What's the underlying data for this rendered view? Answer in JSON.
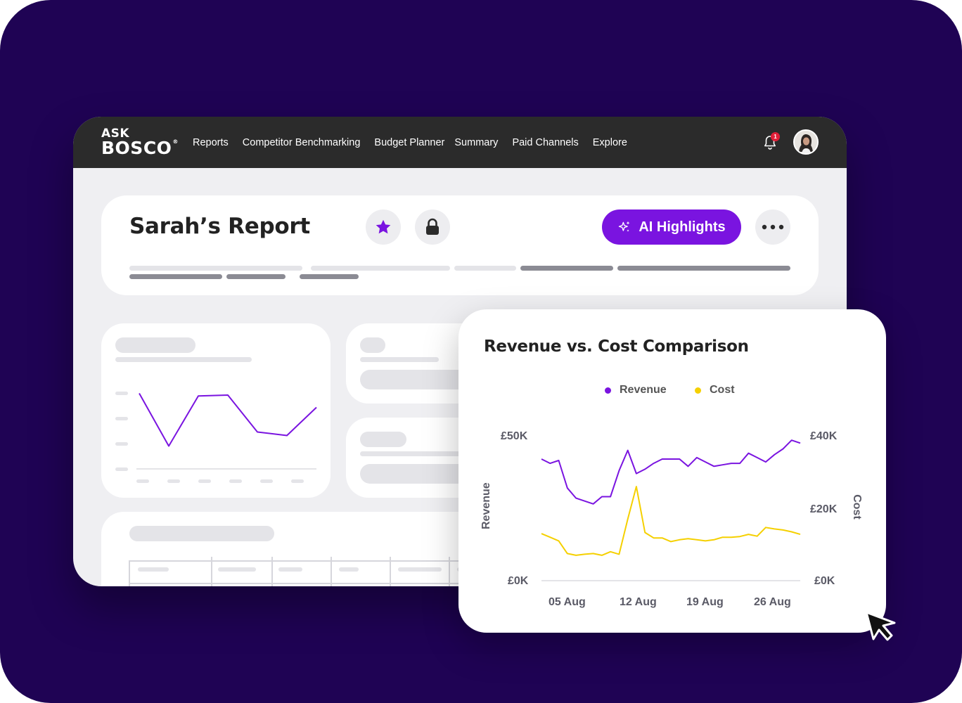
{
  "brand": {
    "ask": "ASK",
    "bosco": "BOSCO",
    "reg": "®"
  },
  "nav": {
    "items": [
      "Reports",
      "Competitor Benchmarking",
      "Budget Planner",
      "Summary",
      "Paid Channels",
      "Explore"
    ]
  },
  "notifications": {
    "count": "1"
  },
  "report": {
    "title": "Sarah’s Report",
    "ai_button": "AI Highlights"
  },
  "colors": {
    "accent": "#7a14e0",
    "revenue": "#7a14e0",
    "cost": "#f5d000",
    "background": "#1f0354"
  },
  "icons": [
    "star-icon",
    "lock-icon",
    "sparkle-icon",
    "more-icon",
    "bell-icon",
    "cursor-icon"
  ],
  "chart_data": {
    "type": "line",
    "title": "Revenue vs. Cost Comparison",
    "y_left_label": "Revenue",
    "y_right_label": "Cost",
    "y_left_ticks": [
      "£0K",
      "£50K"
    ],
    "y_right_ticks": [
      "£0K",
      "£20K",
      "£40K"
    ],
    "x_ticks": [
      "05 Aug",
      "12 Aug",
      "19 Aug",
      "26 Aug"
    ],
    "ylim_left": [
      0,
      50000
    ],
    "ylim_right": [
      0,
      40000
    ],
    "x": [
      1,
      2,
      3,
      4,
      5,
      6,
      7,
      8,
      9,
      10,
      11,
      12,
      13,
      14,
      15,
      16,
      17,
      18,
      19,
      20,
      21,
      22,
      23,
      24,
      25,
      26,
      27,
      28,
      29,
      30,
      31
    ],
    "series": [
      {
        "name": "Revenue",
        "axis": "left",
        "values": [
          42000,
          40500,
          41500,
          32000,
          28500,
          27500,
          26500,
          29000,
          29000,
          38000,
          45000,
          37000,
          38500,
          40500,
          42000,
          42000,
          42000,
          39500,
          42500,
          41000,
          39500,
          40000,
          40500,
          40500,
          44000,
          42500,
          41000,
          43500,
          45500,
          48500,
          47500
        ]
      },
      {
        "name": "Cost",
        "axis": "right",
        "values": [
          13000,
          12000,
          11000,
          7500,
          7000,
          7300,
          7500,
          7000,
          8000,
          7300,
          17000,
          26000,
          13300,
          11800,
          11800,
          10800,
          11300,
          11600,
          11300,
          11000,
          11300,
          12000,
          12000,
          12200,
          12800,
          12300,
          14700,
          14300,
          14000,
          13500,
          12800
        ]
      }
    ]
  },
  "mini_chart": {
    "values": [
      78,
      18,
      75,
      76,
      34,
      30,
      62
    ]
  }
}
